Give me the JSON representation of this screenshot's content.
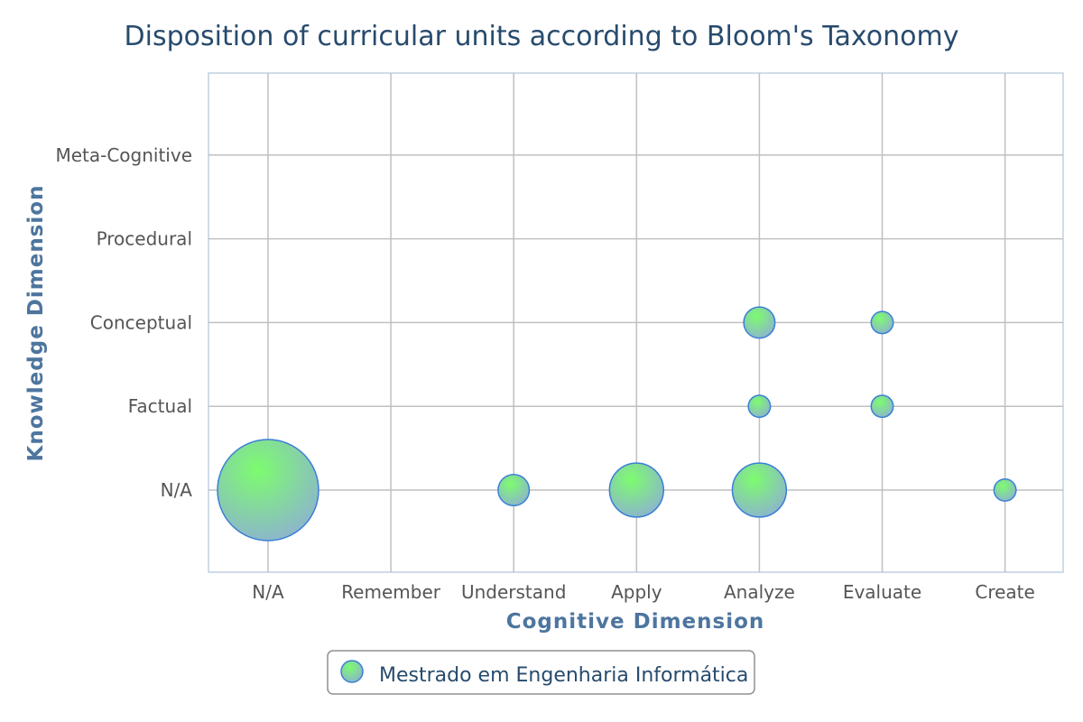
{
  "chart_data": {
    "type": "scatter",
    "title": "Disposition of curricular units according to Bloom's Taxonomy",
    "xlabel": "Cognitive Dimension",
    "ylabel": "Knowledge Dimension",
    "x_categories": [
      "N/A",
      "Remember",
      "Understand",
      "Apply",
      "Analyze",
      "Evaluate",
      "Create"
    ],
    "y_categories": [
      "N/A",
      "Factual",
      "Conceptual",
      "Procedural",
      "Meta-Cognitive"
    ],
    "grid": true,
    "legend_position": "bottom-center",
    "series": [
      {
        "name": "Mestrado em Engenharia Informática",
        "points": [
          {
            "x": "N/A",
            "y": "N/A",
            "size": 21
          },
          {
            "x": "Understand",
            "y": "N/A",
            "size": 2
          },
          {
            "x": "Apply",
            "y": "N/A",
            "size": 6
          },
          {
            "x": "Analyze",
            "y": "N/A",
            "size": 6
          },
          {
            "x": "Create",
            "y": "N/A",
            "size": 1
          },
          {
            "x": "Analyze",
            "y": "Factual",
            "size": 1
          },
          {
            "x": "Evaluate",
            "y": "Factual",
            "size": 1
          },
          {
            "x": "Analyze",
            "y": "Conceptual",
            "size": 2
          },
          {
            "x": "Evaluate",
            "y": "Conceptual",
            "size": 1
          }
        ]
      }
    ]
  },
  "colors": {
    "title": "#274b6d",
    "axis_title": "#4d759e",
    "tick_label": "#555555",
    "grid": "#c0c0c0",
    "plot_border": "#c0d0e0",
    "bubble_stroke": "#3a7fd5",
    "bubble_fill_top": "#7dfc6e",
    "bubble_fill_bottom": "#8eaed6",
    "legend_border": "#909090"
  }
}
